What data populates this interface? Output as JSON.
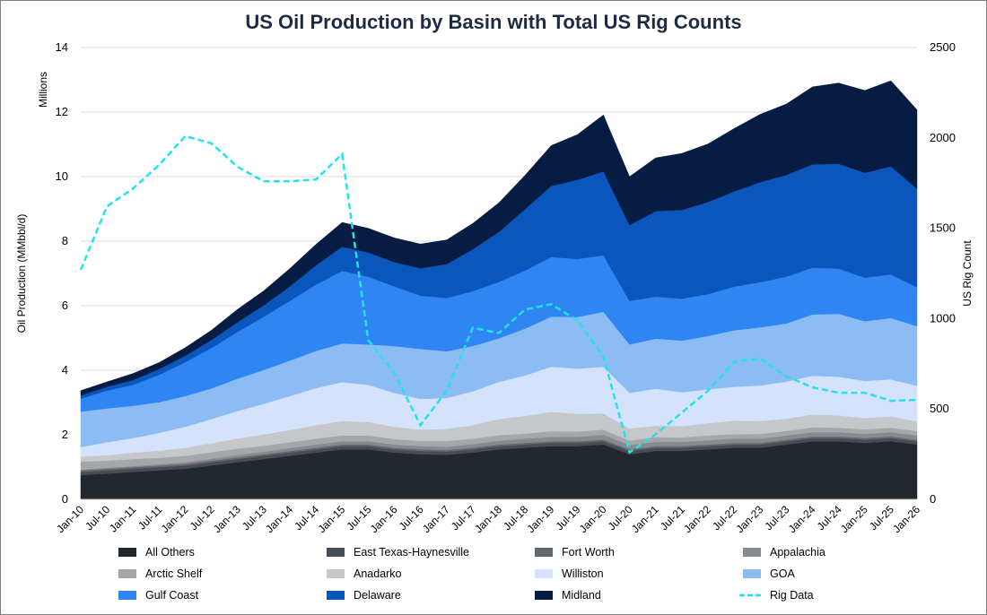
{
  "chart_data": {
    "type": "area",
    "title": "US Oil Production by Basin with Total US Rig Counts",
    "ylabel": "Oil Production (MMbbl/d)",
    "ylabel_units": "Millions",
    "y2label": "US Rig Count",
    "ylim": [
      0,
      14
    ],
    "y2lim": [
      0,
      2500
    ],
    "yticks": [
      "0",
      "2",
      "4",
      "6",
      "8",
      "10",
      "12",
      "14"
    ],
    "y2ticks": [
      "0",
      "500",
      "1000",
      "1500",
      "2000",
      "2500"
    ],
    "x": [
      "Jan-10",
      "Jul-10",
      "Jan-11",
      "Jul-11",
      "Jan-12",
      "Jul-12",
      "Jan-13",
      "Jul-13",
      "Jan-14",
      "Jul-14",
      "Jan-15",
      "Jul-15",
      "Jan-16",
      "Jul-16",
      "Jan-17",
      "Jul-17",
      "Jan-18",
      "Jul-18",
      "Jan-19",
      "Jul-19",
      "Jan-20",
      "Jul-20",
      "Jan-21",
      "Jul-21",
      "Jan-22",
      "Jul-22",
      "Jan-23",
      "Jul-23",
      "Jan-24",
      "Jul-24",
      "Jan-25",
      "Jul-25",
      "Jan-26"
    ],
    "grid": true,
    "legend_position": "bottom",
    "series": [
      {
        "name": "All Others",
        "color": "#23272e",
        "values": [
          0.75,
          0.8,
          0.85,
          0.9,
          0.95,
          1.05,
          1.15,
          1.25,
          1.35,
          1.45,
          1.55,
          1.55,
          1.45,
          1.4,
          1.38,
          1.45,
          1.55,
          1.6,
          1.65,
          1.65,
          1.7,
          1.4,
          1.5,
          1.5,
          1.55,
          1.6,
          1.6,
          1.7,
          1.8,
          1.8,
          1.75,
          1.8,
          1.7
        ]
      },
      {
        "name": "East Texas-Haynesville",
        "color": "#474d57",
        "values": [
          0.1,
          0.1,
          0.1,
          0.1,
          0.1,
          0.1,
          0.1,
          0.1,
          0.1,
          0.1,
          0.1,
          0.1,
          0.1,
          0.1,
          0.1,
          0.1,
          0.1,
          0.1,
          0.1,
          0.1,
          0.1,
          0.1,
          0.1,
          0.1,
          0.1,
          0.1,
          0.1,
          0.1,
          0.1,
          0.1,
          0.1,
          0.1,
          0.1
        ]
      },
      {
        "name": "Fort Worth",
        "color": "#63676e",
        "values": [
          0.05,
          0.05,
          0.05,
          0.05,
          0.05,
          0.05,
          0.05,
          0.05,
          0.05,
          0.05,
          0.05,
          0.05,
          0.05,
          0.05,
          0.05,
          0.05,
          0.05,
          0.05,
          0.05,
          0.05,
          0.05,
          0.05,
          0.05,
          0.05,
          0.05,
          0.05,
          0.05,
          0.05,
          0.05,
          0.05,
          0.05,
          0.05,
          0.05
        ]
      },
      {
        "name": "Appalachia",
        "color": "#878a8f",
        "values": [
          0.02,
          0.03,
          0.03,
          0.04,
          0.05,
          0.06,
          0.07,
          0.08,
          0.09,
          0.1,
          0.1,
          0.1,
          0.1,
          0.1,
          0.1,
          0.11,
          0.12,
          0.13,
          0.14,
          0.14,
          0.15,
          0.13,
          0.13,
          0.13,
          0.13,
          0.13,
          0.13,
          0.13,
          0.13,
          0.13,
          0.13,
          0.13,
          0.13
        ]
      },
      {
        "name": "Arctic Shelf",
        "color": "#a4a6aa",
        "values": [
          0.25,
          0.22,
          0.22,
          0.2,
          0.2,
          0.2,
          0.2,
          0.18,
          0.18,
          0.18,
          0.18,
          0.18,
          0.17,
          0.16,
          0.18,
          0.17,
          0.17,
          0.16,
          0.17,
          0.16,
          0.16,
          0.14,
          0.15,
          0.14,
          0.15,
          0.14,
          0.15,
          0.14,
          0.15,
          0.14,
          0.14,
          0.14,
          0.14
        ]
      },
      {
        "name": "Anadarko",
        "color": "#c5c7cb",
        "values": [
          0.15,
          0.17,
          0.2,
          0.22,
          0.25,
          0.28,
          0.32,
          0.35,
          0.38,
          0.42,
          0.45,
          0.42,
          0.38,
          0.35,
          0.38,
          0.42,
          0.5,
          0.55,
          0.6,
          0.55,
          0.5,
          0.38,
          0.35,
          0.35,
          0.38,
          0.42,
          0.4,
          0.38,
          0.4,
          0.38,
          0.35,
          0.35,
          0.3
        ]
      },
      {
        "name": "Williston",
        "color": "#d4e3fb",
        "values": [
          0.3,
          0.4,
          0.45,
          0.55,
          0.65,
          0.75,
          0.85,
          0.95,
          1.05,
          1.15,
          1.2,
          1.15,
          1.05,
          0.95,
          0.95,
          1.05,
          1.15,
          1.25,
          1.4,
          1.4,
          1.45,
          1.1,
          1.15,
          1.05,
          1.05,
          1.05,
          1.1,
          1.15,
          1.2,
          1.2,
          1.15,
          1.15,
          1.1
        ]
      },
      {
        "name": "GOA",
        "color": "#8dbbf4",
        "values": [
          1.1,
          1.05,
          1.0,
          0.95,
          0.95,
          0.95,
          1.0,
          1.05,
          1.1,
          1.15,
          1.2,
          1.25,
          1.45,
          1.55,
          1.45,
          1.4,
          1.35,
          1.45,
          1.55,
          1.6,
          1.7,
          1.5,
          1.55,
          1.6,
          1.65,
          1.75,
          1.8,
          1.8,
          1.9,
          1.95,
          1.85,
          1.9,
          1.85
        ]
      },
      {
        "name": "Gulf Coast",
        "color": "#2f86f2",
        "values": [
          0.4,
          0.55,
          0.65,
          0.85,
          1.05,
          1.25,
          1.45,
          1.65,
          1.85,
          2.05,
          2.25,
          2.1,
          1.85,
          1.65,
          1.65,
          1.7,
          1.75,
          1.8,
          1.85,
          1.8,
          1.75,
          1.35,
          1.3,
          1.3,
          1.3,
          1.35,
          1.4,
          1.45,
          1.45,
          1.4,
          1.35,
          1.35,
          1.2
        ]
      },
      {
        "name": "Delaware",
        "color": "#0b56bd",
        "values": [
          0.1,
          0.12,
          0.15,
          0.18,
          0.2,
          0.25,
          0.3,
          0.35,
          0.45,
          0.6,
          0.75,
          0.75,
          0.75,
          0.85,
          1.05,
          1.3,
          1.55,
          1.9,
          2.2,
          2.45,
          2.6,
          2.35,
          2.65,
          2.75,
          2.85,
          2.95,
          3.1,
          3.15,
          3.2,
          3.25,
          3.25,
          3.35,
          3.05
        ]
      },
      {
        "name": "Midland",
        "color": "#071c42",
        "values": [
          0.15,
          0.15,
          0.2,
          0.2,
          0.25,
          0.3,
          0.4,
          0.45,
          0.55,
          0.65,
          0.75,
          0.75,
          0.75,
          0.75,
          0.75,
          0.8,
          0.9,
          1.05,
          1.25,
          1.4,
          1.75,
          1.5,
          1.65,
          1.75,
          1.8,
          1.95,
          2.1,
          2.2,
          2.4,
          2.5,
          2.55,
          2.65,
          2.45
        ]
      }
    ],
    "rig_series": {
      "name": "Rig Data",
      "color": "#22e3ea",
      "axis": "right",
      "values": [
        1270,
        1620,
        1720,
        1850,
        2010,
        1970,
        1840,
        1760,
        1760,
        1770,
        1910,
        880,
        700,
        410,
        600,
        950,
        920,
        1050,
        1080,
        990,
        790,
        260,
        360,
        480,
        600,
        760,
        780,
        680,
        620,
        590,
        590,
        545,
        550
      ]
    },
    "legend": [
      [
        "All Others",
        "East Texas-Haynesville",
        "Fort Worth",
        "Appalachia"
      ],
      [
        "Arctic Shelf",
        "Anadarko",
        "Williston",
        "GOA"
      ],
      [
        "Gulf Coast",
        "Delaware",
        "Midland",
        "Rig Data"
      ]
    ]
  }
}
